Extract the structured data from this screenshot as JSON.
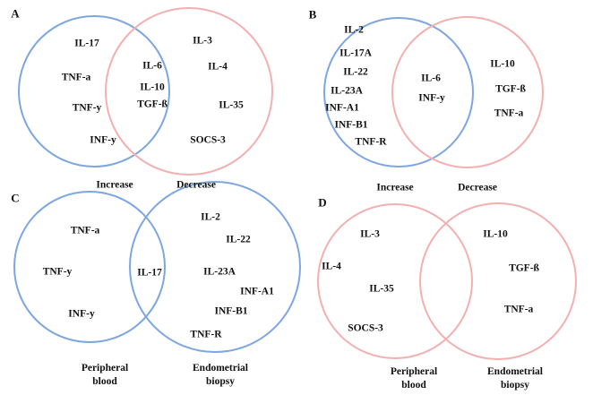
{
  "colors": {
    "blue": "#7ea6e0",
    "pink": "#f2b0b0",
    "text": "#111111"
  },
  "panels": {
    "A": {
      "label": "A",
      "left_only": [
        "IL-17",
        "TNF-a",
        "TNF-y",
        "INF-y"
      ],
      "overlap": [
        "IL-6",
        "IL-10",
        "TGF-ß"
      ],
      "right_only": [
        "IL-3",
        "IL-4",
        "IL-35",
        "SOCS-3"
      ],
      "left_caption": "Increase",
      "right_caption": "Decrease"
    },
    "B": {
      "label": "B",
      "left_only": [
        "IL-2",
        "IL-17A",
        "IL-22",
        "IL-23A",
        "INF-A1",
        "INF-B1",
        "TNF-R"
      ],
      "overlap": [
        "IL-6",
        "INF-y"
      ],
      "right_only": [
        "IL-10",
        "TGF-ß",
        "TNF-a"
      ],
      "left_caption": "Increase",
      "right_caption": "Decrease"
    },
    "C": {
      "label": "C",
      "left_only": [
        "TNF-a",
        "TNF-y",
        "INF-y"
      ],
      "overlap": [
        "IL-17"
      ],
      "right_only": [
        "IL-2",
        "IL-22",
        "IL-23A",
        "INF-A1",
        "INF-B1",
        "TNF-R"
      ],
      "left_caption_1": "Peripheral",
      "left_caption_2": "blood",
      "right_caption_1": "Endometrial",
      "right_caption_2": "biopsy"
    },
    "D": {
      "label": "D",
      "left_only": [
        "IL-3",
        "IL-4",
        "IL-35",
        "SOCS-3"
      ],
      "right_only": [
        "IL-10",
        "TGF-ß",
        "TNF-a"
      ],
      "left_caption_1": "Peripheral",
      "left_caption_2": "blood",
      "right_caption_1": "Endometrial",
      "right_caption_2": "biopsy"
    }
  }
}
